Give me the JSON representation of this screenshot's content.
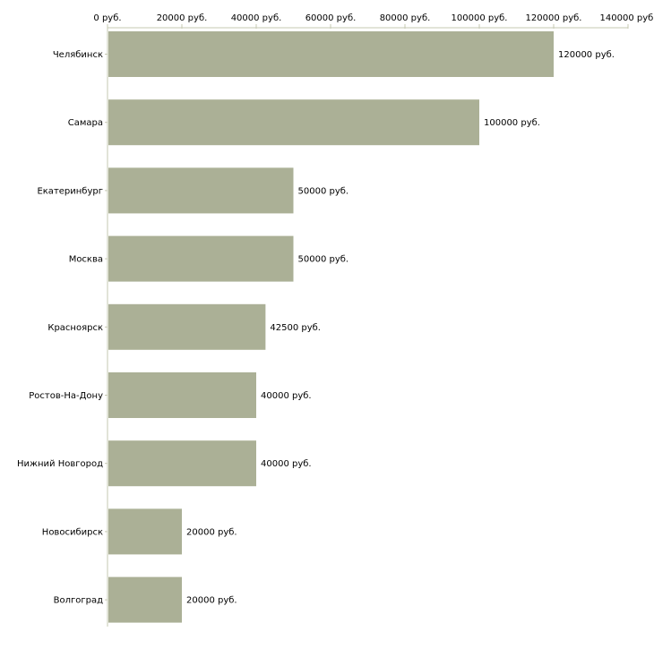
{
  "chart_data": {
    "type": "bar",
    "orientation": "horizontal",
    "title": "",
    "xlabel": "",
    "ylabel": "",
    "xlim": [
      0,
      140000
    ],
    "x_ticks": [
      0,
      20000,
      40000,
      60000,
      80000,
      100000,
      120000,
      140000
    ],
    "x_tick_labels": [
      "0 руб.",
      "20000 руб.",
      "40000 руб.",
      "60000 руб.",
      "80000 руб.",
      "100000 руб.",
      "120000 руб.",
      "140000 руб."
    ],
    "x_axis_position": "top",
    "categories": [
      "Челябинск",
      "Самара",
      "Екатеринбург",
      "Москва",
      "Красноярск",
      "Ростов-На-Дону",
      "Нижний Новгород",
      "Новосибирск",
      "Волгоград"
    ],
    "values": [
      120000,
      100000,
      50000,
      50000,
      42500,
      40000,
      40000,
      20000,
      20000
    ],
    "data_labels": [
      "120000 руб.",
      "100000 руб.",
      "50000 руб.",
      "50000 руб.",
      "42500 руб.",
      "40000 руб.",
      "40000 руб.",
      "20000 руб.",
      "20000 руб."
    ],
    "grid": false,
    "legend": "none",
    "colors": {
      "bar": "#abb096",
      "axis": "#c6c9b2"
    }
  }
}
